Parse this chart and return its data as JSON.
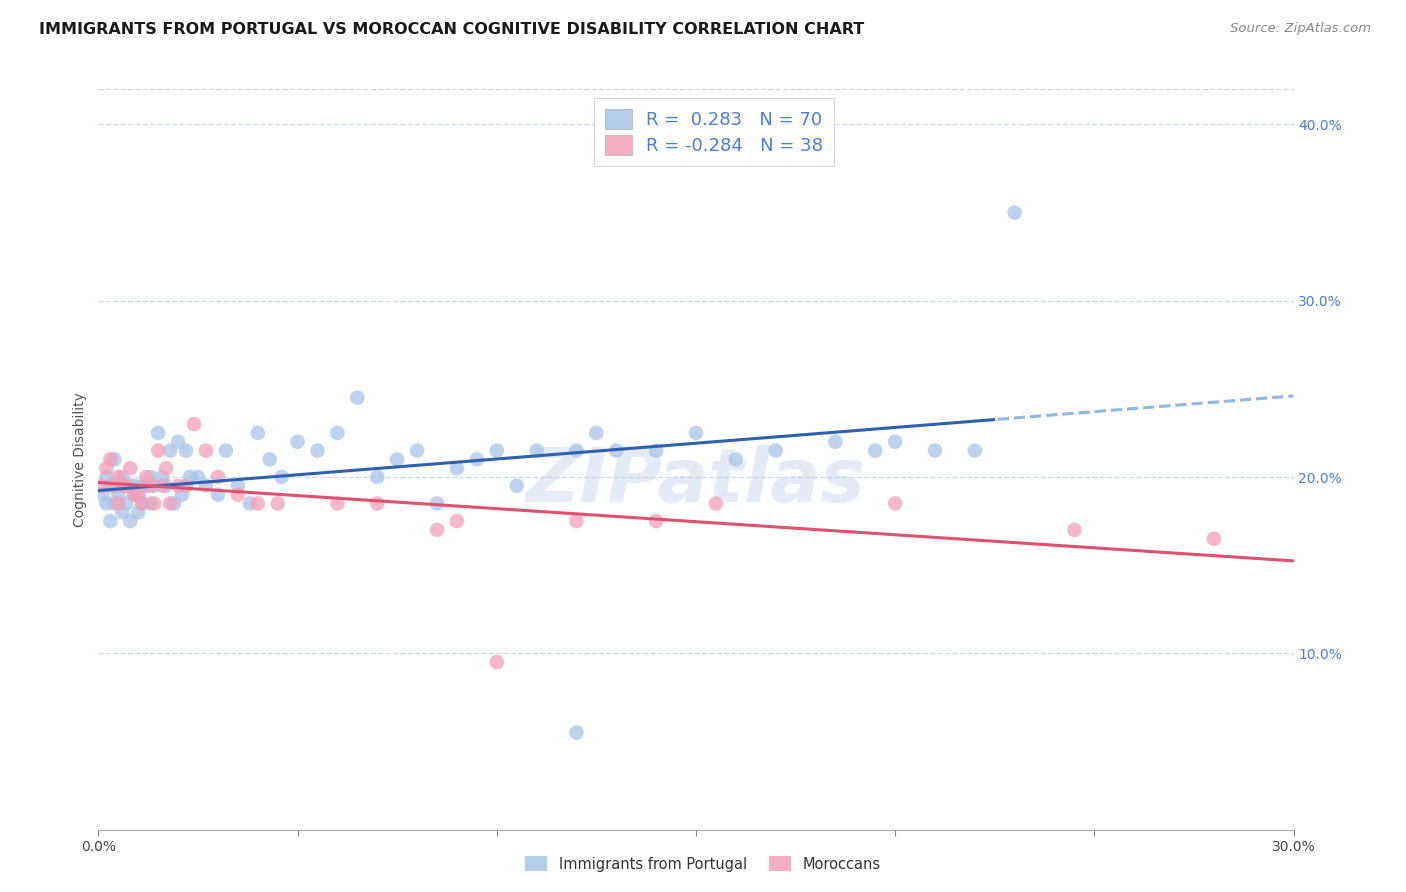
{
  "title": "IMMIGRANTS FROM PORTUGAL VS MOROCCAN COGNITIVE DISABILITY CORRELATION CHART",
  "source": "Source: ZipAtlas.com",
  "ylabel": "Cognitive Disability",
  "watermark": "ZIPatlas",
  "blue_r": 0.283,
  "blue_n": 70,
  "pink_r": -0.284,
  "pink_n": 38,
  "blue_color": "#a8c4e8",
  "pink_color": "#f4a0b8",
  "blue_line_color": "#3060b0",
  "pink_line_color": "#e05070",
  "dashed_color": "#90b8e0",
  "grid_color": "#c8d8ee",
  "right_tick_color": "#4a7fd4",
  "bg_color": "#ffffff",
  "xlim": [
    0.0,
    0.3
  ],
  "ylim": [
    0.0,
    0.42
  ],
  "xticks": [
    0.0,
    0.05,
    0.1,
    0.15,
    0.2,
    0.25,
    0.3
  ],
  "xticklabels": [
    "0.0%",
    "",
    "",
    "",
    "",
    "",
    "30.0%"
  ],
  "yticks_right": [
    0.1,
    0.2,
    0.3,
    0.4
  ],
  "ytick_labels_right": [
    "10.0%",
    "20.0%",
    "30.0%",
    "40.0%"
  ],
  "blue_x": [
    0.001,
    0.002,
    0.002,
    0.003,
    0.003,
    0.004,
    0.004,
    0.005,
    0.005,
    0.006,
    0.006,
    0.007,
    0.007,
    0.008,
    0.008,
    0.009,
    0.009,
    0.01,
    0.01,
    0.011,
    0.011,
    0.012,
    0.013,
    0.013,
    0.014,
    0.015,
    0.016,
    0.017,
    0.018,
    0.019,
    0.02,
    0.021,
    0.022,
    0.023,
    0.025,
    0.027,
    0.03,
    0.032,
    0.035,
    0.038,
    0.04,
    0.043,
    0.046,
    0.05,
    0.055,
    0.06,
    0.065,
    0.07,
    0.075,
    0.08,
    0.085,
    0.09,
    0.095,
    0.1,
    0.105,
    0.11,
    0.12,
    0.125,
    0.13,
    0.14,
    0.15,
    0.16,
    0.17,
    0.185,
    0.195,
    0.2,
    0.21,
    0.22,
    0.23,
    0.12
  ],
  "blue_y": [
    0.19,
    0.185,
    0.2,
    0.175,
    0.195,
    0.21,
    0.185,
    0.195,
    0.19,
    0.2,
    0.18,
    0.195,
    0.185,
    0.195,
    0.175,
    0.19,
    0.195,
    0.19,
    0.18,
    0.195,
    0.185,
    0.195,
    0.2,
    0.185,
    0.195,
    0.225,
    0.2,
    0.195,
    0.215,
    0.185,
    0.22,
    0.19,
    0.215,
    0.2,
    0.2,
    0.195,
    0.19,
    0.215,
    0.195,
    0.185,
    0.225,
    0.21,
    0.2,
    0.22,
    0.215,
    0.225,
    0.245,
    0.2,
    0.21,
    0.215,
    0.185,
    0.205,
    0.21,
    0.215,
    0.195,
    0.215,
    0.215,
    0.225,
    0.215,
    0.215,
    0.225,
    0.21,
    0.215,
    0.22,
    0.215,
    0.22,
    0.215,
    0.215,
    0.35,
    0.055
  ],
  "pink_x": [
    0.001,
    0.002,
    0.003,
    0.004,
    0.005,
    0.005,
    0.006,
    0.007,
    0.008,
    0.009,
    0.01,
    0.011,
    0.012,
    0.013,
    0.014,
    0.015,
    0.016,
    0.017,
    0.018,
    0.02,
    0.022,
    0.024,
    0.027,
    0.03,
    0.035,
    0.04,
    0.045,
    0.06,
    0.07,
    0.085,
    0.09,
    0.1,
    0.12,
    0.14,
    0.155,
    0.2,
    0.245,
    0.28
  ],
  "pink_y": [
    0.195,
    0.205,
    0.21,
    0.195,
    0.2,
    0.185,
    0.195,
    0.195,
    0.205,
    0.19,
    0.19,
    0.185,
    0.2,
    0.195,
    0.185,
    0.215,
    0.195,
    0.205,
    0.185,
    0.195,
    0.195,
    0.23,
    0.215,
    0.2,
    0.19,
    0.185,
    0.185,
    0.185,
    0.185,
    0.17,
    0.175,
    0.095,
    0.175,
    0.175,
    0.185,
    0.185,
    0.17,
    0.165
  ],
  "legend_blue_label": "R =  0.283   N = 70",
  "legend_pink_label": "R = -0.284   N = 38",
  "bottom_legend_blue": "Immigrants from Portugal",
  "bottom_legend_pink": "Moroccans",
  "title_fontsize": 11.5,
  "source_fontsize": 9.5,
  "legend_fontsize": 13,
  "ylabel_fontsize": 10,
  "tick_fontsize": 10,
  "scatter_size": 110
}
